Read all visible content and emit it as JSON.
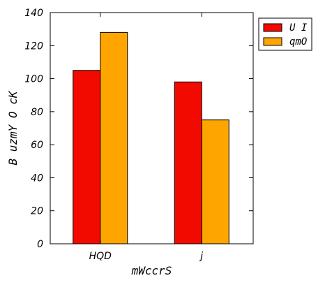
{
  "chart_data": {
    "type": "bar",
    "categories": [
      "HQD",
      "j"
    ],
    "series": [
      {
        "name": "U I",
        "values": [
          105,
          98
        ],
        "color": "#f20a00"
      },
      {
        "name": "qmO",
        "values": [
          128,
          75
        ],
        "color": "#ffa500"
      }
    ],
    "xlabel": "mWccrS",
    "ylabel": "B uzmY O cK",
    "ylim": [
      0,
      140
    ],
    "yticks": [
      0,
      20,
      40,
      60,
      80,
      100,
      120,
      140
    ],
    "grid": false,
    "legend_position": "top-right"
  }
}
